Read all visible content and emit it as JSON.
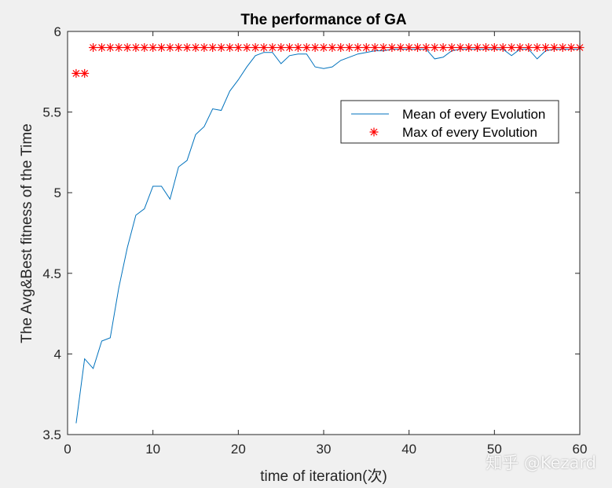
{
  "chart_data": {
    "type": "line",
    "title": "The performance of GA",
    "xlabel": "time of iteration(次)",
    "ylabel": "The Avg&Best fitness of the Time",
    "xlim": [
      0,
      60
    ],
    "ylim": [
      3.5,
      6
    ],
    "xticks": [
      "0",
      "10",
      "20",
      "30",
      "40",
      "50",
      "60"
    ],
    "yticks": [
      "3.5",
      "4",
      "4.5",
      "5",
      "5.5",
      "6"
    ],
    "xtick_values": [
      0,
      10,
      20,
      30,
      40,
      50,
      60
    ],
    "ytick_values": [
      3.5,
      4,
      4.5,
      5,
      5.5,
      6
    ],
    "legend_position": "top-right",
    "series": [
      {
        "name": "Mean of every Evolution",
        "style": "line",
        "color": "#0072bd",
        "x": [
          1,
          2,
          3,
          4,
          5,
          6,
          7,
          8,
          9,
          10,
          11,
          12,
          13,
          14,
          15,
          16,
          17,
          18,
          19,
          20,
          21,
          22,
          23,
          24,
          25,
          26,
          27,
          28,
          29,
          30,
          31,
          32,
          33,
          34,
          35,
          36,
          37,
          38,
          39,
          40,
          41,
          42,
          43,
          44,
          45,
          46,
          47,
          48,
          49,
          50,
          51,
          52,
          53,
          54,
          55,
          56,
          57,
          58,
          59,
          60
        ],
        "values": [
          3.57,
          3.97,
          3.91,
          4.08,
          4.1,
          4.41,
          4.66,
          4.86,
          4.9,
          5.04,
          5.04,
          4.96,
          5.16,
          5.2,
          5.36,
          5.41,
          5.52,
          5.51,
          5.63,
          5.7,
          5.78,
          5.85,
          5.87,
          5.87,
          5.8,
          5.85,
          5.86,
          5.86,
          5.78,
          5.77,
          5.78,
          5.82,
          5.84,
          5.86,
          5.87,
          5.88,
          5.88,
          5.89,
          5.89,
          5.89,
          5.89,
          5.89,
          5.83,
          5.84,
          5.88,
          5.89,
          5.89,
          5.89,
          5.89,
          5.89,
          5.89,
          5.85,
          5.89,
          5.89,
          5.83,
          5.88,
          5.89,
          5.89,
          5.89,
          5.89
        ]
      },
      {
        "name": "Max of every Evolution",
        "style": "marker",
        "marker": "*",
        "color": "#ff0000",
        "x": [
          1,
          2,
          3,
          4,
          5,
          6,
          7,
          8,
          9,
          10,
          11,
          12,
          13,
          14,
          15,
          16,
          17,
          18,
          19,
          20,
          21,
          22,
          23,
          24,
          25,
          26,
          27,
          28,
          29,
          30,
          31,
          32,
          33,
          34,
          35,
          36,
          37,
          38,
          39,
          40,
          41,
          42,
          43,
          44,
          45,
          46,
          47,
          48,
          49,
          50,
          51,
          52,
          53,
          54,
          55,
          56,
          57,
          58,
          59,
          60
        ],
        "values": [
          5.74,
          5.74,
          5.9,
          5.9,
          5.9,
          5.9,
          5.9,
          5.9,
          5.9,
          5.9,
          5.9,
          5.9,
          5.9,
          5.9,
          5.9,
          5.9,
          5.9,
          5.9,
          5.9,
          5.9,
          5.9,
          5.9,
          5.9,
          5.9,
          5.9,
          5.9,
          5.9,
          5.9,
          5.9,
          5.9,
          5.9,
          5.9,
          5.9,
          5.9,
          5.9,
          5.9,
          5.9,
          5.9,
          5.9,
          5.9,
          5.9,
          5.9,
          5.9,
          5.9,
          5.9,
          5.9,
          5.9,
          5.9,
          5.9,
          5.9,
          5.9,
          5.9,
          5.9,
          5.9,
          5.9,
          5.9,
          5.9,
          5.9,
          5.9,
          5.9
        ]
      }
    ]
  },
  "watermark": "知乎 @Kezard"
}
